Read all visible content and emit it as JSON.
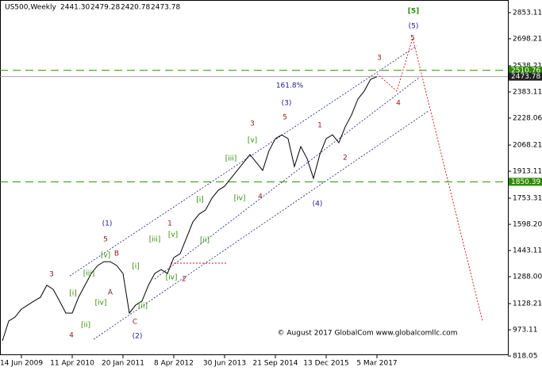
{
  "chart_data": {
    "type": "line",
    "title": "US500,Weekly",
    "ohlc": [
      "2441.30",
      "2479.28",
      "2420.78",
      "2473.78"
    ],
    "categories": [
      null,
      null,
      null,
      "14 Jun 2009",
      null,
      null,
      null,
      null,
      null,
      null,
      null,
      "11 Apr 2010",
      null,
      null,
      null,
      null,
      null,
      null,
      null,
      "20 Jan 2011",
      null,
      null,
      null,
      null,
      null,
      null,
      null,
      "8 Apr 2012",
      null,
      null,
      null,
      null,
      null,
      null,
      null,
      "30 Jun 2013",
      null,
      null,
      null,
      null,
      null,
      null,
      null,
      "21 Sep 2014",
      null,
      null,
      null,
      null,
      null,
      null,
      null,
      "13 Dec 2015",
      null,
      null,
      null,
      null,
      null,
      null,
      null,
      "5 Mar 2017"
    ],
    "values": [
      907,
      1025,
      1049,
      1096,
      1120,
      1144,
      1166,
      1237,
      1213,
      1144,
      1072,
      1072,
      1166,
      1237,
      1307,
      1354,
      1377,
      1377,
      1354,
      1307,
      1072,
      1120,
      1144,
      1237,
      1307,
      1330,
      1307,
      1401,
      1424,
      1518,
      1612,
      1659,
      1683,
      1753,
      1800,
      1824,
      1871,
      1918,
      1965,
      2012,
      1965,
      1918,
      2035,
      2106,
      2129,
      2106,
      1941,
      2059,
      1988,
      1871,
      2012,
      2106,
      2129,
      2082,
      2176,
      2247,
      2341,
      2388,
      2458,
      2473
    ],
    "color": "#000000",
    "ylim": [
      790,
      2928
    ],
    "yticks": [
      818.05,
      973.11,
      1128.21,
      {
        "value": 1288,
        "label": "1288.00"
      },
      1443.11,
      {
        "value": 1598.2,
        "label": "1598.20"
      },
      1753.31,
      1913.11,
      2068.21,
      2228.06,
      2383.11,
      2538.21,
      2698.21,
      2853.11
    ],
    "levels": [
      {
        "value": 2510.76,
        "color": "#2e8b00"
      },
      {
        "value": 1850.39,
        "color": "#2e8b00"
      }
    ],
    "last_price": 2473.78,
    "annotations": [
      {
        "text": "3",
        "color": "#8b1a1a"
      },
      {
        "text": "4",
        "color": "#8b1a1a"
      },
      {
        "text": "5",
        "color": "#8b1a1a"
      },
      {
        "text": "B",
        "color": "#8b1a1a"
      },
      {
        "text": "A",
        "color": "#8b1a1a"
      },
      {
        "text": "C",
        "color": "#8b1a1a"
      },
      {
        "text": "1",
        "color": "#8b1a1a"
      },
      {
        "text": "2",
        "color": "#8b1a1a"
      },
      {
        "text": "3",
        "color": "#8b1a1a"
      },
      {
        "text": "5",
        "color": "#8b1a1a"
      },
      {
        "text": "4",
        "color": "#8b1a1a"
      },
      {
        "text": "1",
        "color": "#8b1a1a"
      },
      {
        "text": "2",
        "color": "#8b1a1a"
      },
      {
        "text": "3",
        "color": "#8b1a1a"
      },
      {
        "text": "4",
        "color": "#8b1a1a"
      },
      {
        "text": "5",
        "color": "#8b1a1a"
      },
      {
        "text": "(1)",
        "color": "#1a1a8c"
      },
      {
        "text": "(2)",
        "color": "#1a1a8c"
      },
      {
        "text": "(3)",
        "color": "#1a1a8c"
      },
      {
        "text": "(4)",
        "color": "#1a1a8c"
      },
      {
        "text": "(5)",
        "color": "#1a1a8c"
      },
      {
        "text": "[i]",
        "color": "#2e8b00"
      },
      {
        "text": "[ii]",
        "color": "#2e8b00"
      },
      {
        "text": "[iii]",
        "color": "#2e8b00"
      },
      {
        "text": "[iv]",
        "color": "#2e8b00"
      },
      {
        "text": "[v]",
        "color": "#2e8b00"
      },
      {
        "text": "[i]",
        "color": "#2e8b00"
      },
      {
        "text": "[ii]",
        "color": "#2e8b00"
      },
      {
        "text": "[iii]",
        "color": "#2e8b00"
      },
      {
        "text": "[iv]",
        "color": "#2e8b00"
      },
      {
        "text": "[v]",
        "color": "#2e8b00"
      },
      {
        "text": "[i]",
        "color": "#2e8b00"
      },
      {
        "text": "[ii]",
        "color": "#2e8b00"
      },
      {
        "text": "[iii]",
        "color": "#2e8b00"
      },
      {
        "text": "[iv]",
        "color": "#2e8b00"
      },
      {
        "text": "[v]",
        "color": "#2e8b00"
      },
      {
        "text": "[5]",
        "color": "#2e8b00"
      },
      {
        "text": "161.8%",
        "color": "#1a1a8c"
      }
    ],
    "copyright": "© August 2017 GlobalCom www.globalcomllc.com"
  }
}
